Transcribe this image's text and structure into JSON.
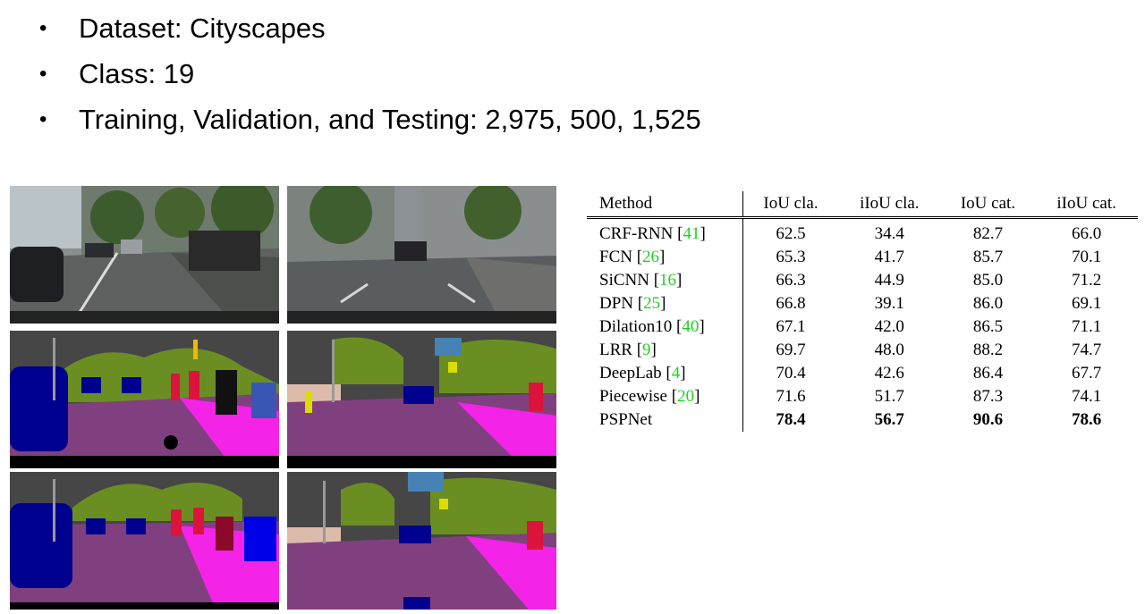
{
  "bullets": [
    "Dataset: Cityscapes",
    "Class: 19",
    "Training, Validation, and Testing: 2,975, 500, 1,525"
  ],
  "table": {
    "headers": [
      "Method",
      "IoU cla.",
      "iIoU cla.",
      "IoU cat.",
      "iIoU cat."
    ],
    "rows": [
      {
        "method": "CRF-RNN",
        "ref": "41",
        "values": [
          "62.5",
          "34.4",
          "82.7",
          "66.0"
        ]
      },
      {
        "method": "FCN",
        "ref": "26",
        "values": [
          "65.3",
          "41.7",
          "85.7",
          "70.1"
        ]
      },
      {
        "method": "SiCNN ",
        "ref": "16",
        "values": [
          "66.3",
          "44.9",
          "85.0",
          "71.2"
        ]
      },
      {
        "method": "DPN",
        "ref": "25",
        "values": [
          "66.8",
          "39.1",
          "86.0",
          "69.1"
        ]
      },
      {
        "method": "Dilation10",
        "ref": "40",
        "values": [
          "67.1",
          "42.0",
          "86.5",
          "71.1"
        ]
      },
      {
        "method": "LRR",
        "ref": "9",
        "values": [
          "69.7",
          "48.0",
          "88.2",
          "74.7"
        ]
      },
      {
        "method": "DeepLab",
        "ref": "4",
        "values": [
          "70.4",
          "42.6",
          "86.4",
          "67.7"
        ]
      },
      {
        "method": "Piecewise",
        "ref": "20",
        "values": [
          "71.6",
          "51.7",
          "87.3",
          "74.1"
        ]
      },
      {
        "method": "PSPNet",
        "ref": "",
        "values": [
          "78.4",
          "56.7",
          "90.6",
          "78.6"
        ]
      }
    ]
  },
  "colors": {
    "reference": "#1fd11f",
    "road": "#80407f",
    "sidewalk": "#f423e8",
    "vegetation": "#6b8e23",
    "building": "#464646",
    "car": "#00008e",
    "person": "#dc143c",
    "sky": "#4682b4"
  }
}
